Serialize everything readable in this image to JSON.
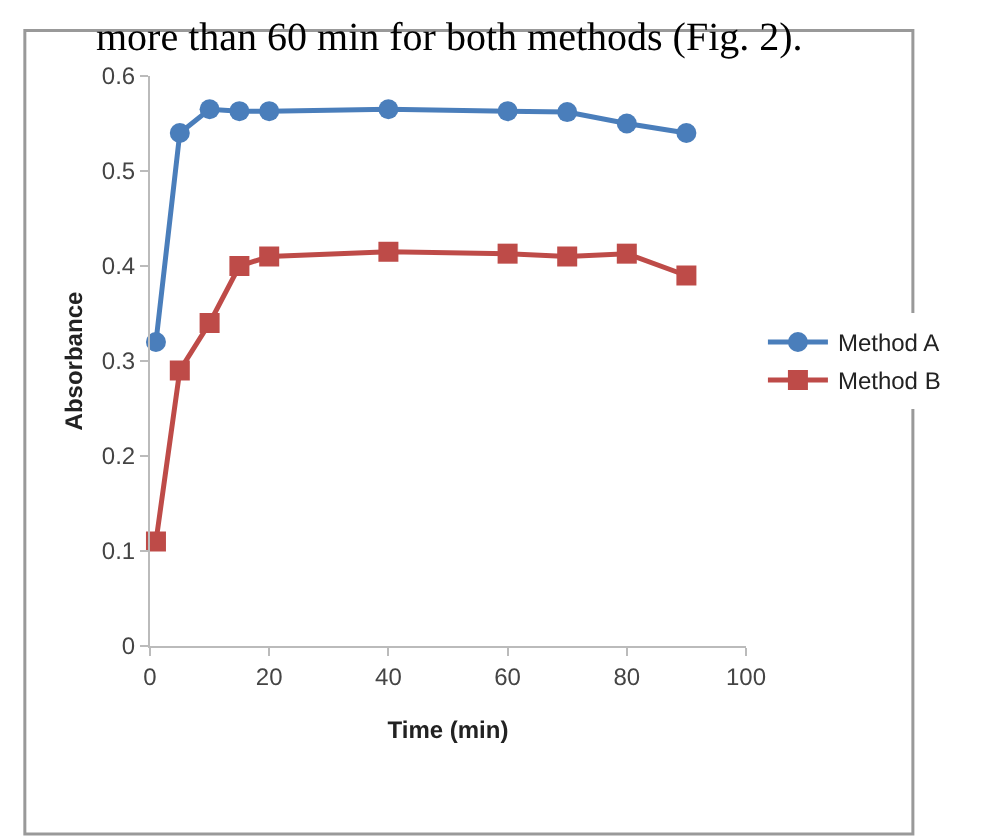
{
  "chart_data": {
    "type": "line",
    "xlabel": "Time (min)",
    "ylabel": "Absorbance",
    "annotations": [
      "more than 60 min for both methods (Fig. 2)."
    ],
    "x": [
      1,
      5,
      10,
      15,
      20,
      40,
      60,
      70,
      80,
      90
    ],
    "series": [
      {
        "name": "Method A",
        "color": "#4a7ebb",
        "marker": "circle",
        "values": [
          0.32,
          0.54,
          0.565,
          0.563,
          0.563,
          0.565,
          0.563,
          0.562,
          0.55,
          0.54
        ]
      },
      {
        "name": "Method B",
        "color": "#be4b48",
        "marker": "square",
        "values": [
          0.11,
          0.29,
          0.34,
          0.4,
          0.41,
          0.415,
          0.413,
          0.41,
          0.413,
          0.39
        ]
      }
    ],
    "xlim": [
      0,
      100
    ],
    "xticks": [
      0,
      20,
      40,
      60,
      80,
      100
    ],
    "ylim": [
      0,
      0.6
    ],
    "yticks": [
      0,
      0.1,
      0.2,
      0.3,
      0.4,
      0.5,
      0.6
    ],
    "grid": false,
    "legend": "right",
    "line_style": "solid"
  }
}
